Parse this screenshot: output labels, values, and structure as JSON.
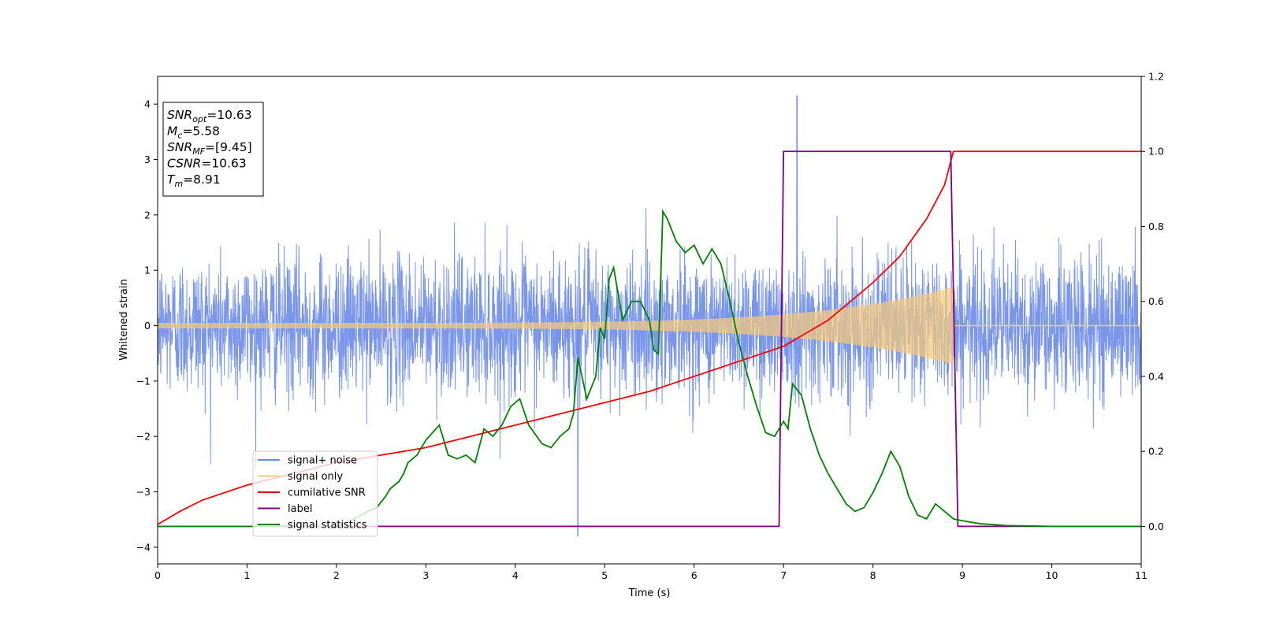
{
  "chart_data": {
    "type": "line",
    "xlabel": "Time (s)",
    "ylabel": "Whitened strain",
    "xlim": [
      0,
      11
    ],
    "ylim": [
      -4.3,
      4.5
    ],
    "y2lim": [
      -0.1,
      1.2
    ],
    "grid": false,
    "legend_position": "lower-left",
    "x_ticks": [
      0,
      1,
      2,
      3,
      4,
      5,
      6,
      7,
      8,
      9,
      10,
      11
    ],
    "y_ticks": [
      -4,
      -3,
      -2,
      -1,
      0,
      1,
      2,
      3,
      4
    ],
    "y2_ticks": [
      0.0,
      0.2,
      0.4,
      0.6,
      0.8,
      1.0,
      1.2
    ],
    "y_tick_labels": [
      "−4",
      "−3",
      "−2",
      "−1",
      "0",
      "1",
      "2",
      "3",
      "4"
    ],
    "y2_tick_labels": [
      "0.0",
      "0.2",
      "0.4",
      "0.6",
      "0.8",
      "1.0",
      "1.2"
    ],
    "annotation": {
      "lines": [
        {
          "base": "SNR",
          "sub": "opt",
          "rest": "=10.63"
        },
        {
          "base": "M",
          "sub": "c",
          "rest": "=5.58"
        },
        {
          "base": "SNR",
          "sub": "MF",
          "rest": "=[9.45]"
        },
        {
          "base": "CSNR",
          "sub": "",
          "rest": "=10.63"
        },
        {
          "base": "T",
          "sub": "m",
          "rest": "=8.91"
        }
      ]
    },
    "series": [
      {
        "name": "signal+ noise",
        "color": "#6b8be8",
        "axis": "left",
        "kind": "noise",
        "sigma": 0.62,
        "peak": {
          "x": 7.15,
          "y": 4.15
        },
        "trough": {
          "x": 4.7,
          "y": -3.8
        }
      },
      {
        "name": "signal only",
        "color": "#f5c97a",
        "axis": "left",
        "kind": "chirp",
        "start_amp": 0.05,
        "end_amp": 0.7,
        "t_end": 8.9
      },
      {
        "name": "cumilative SNR",
        "color": "#ff0000",
        "axis": "right",
        "x": [
          0,
          0.25,
          0.5,
          1.0,
          1.5,
          2.0,
          2.5,
          3.0,
          3.5,
          4.0,
          4.5,
          5.0,
          5.5,
          6.0,
          6.5,
          7.0,
          7.5,
          8.0,
          8.3,
          8.6,
          8.8,
          8.9,
          9.0,
          11.0
        ],
        "y": [
          0.005,
          0.04,
          0.07,
          0.11,
          0.14,
          0.17,
          0.19,
          0.21,
          0.24,
          0.27,
          0.3,
          0.33,
          0.36,
          0.4,
          0.44,
          0.48,
          0.55,
          0.65,
          0.72,
          0.82,
          0.91,
          1.0,
          1.0,
          1.0
        ]
      },
      {
        "name": "label",
        "color": "#800080",
        "axis": "right",
        "x": [
          0,
          6.95,
          7.0,
          8.87,
          8.95,
          11.0
        ],
        "y": [
          0.0,
          0.0,
          1.0,
          1.0,
          0.0,
          0.0
        ]
      },
      {
        "name": "signal statistics",
        "color": "#008000",
        "axis": "right",
        "x": [
          0,
          2.0,
          2.2,
          2.35,
          2.45,
          2.55,
          2.6,
          2.7,
          2.75,
          2.8,
          2.9,
          3.0,
          3.15,
          3.25,
          3.35,
          3.45,
          3.55,
          3.65,
          3.75,
          3.85,
          3.95,
          4.05,
          4.15,
          4.3,
          4.4,
          4.5,
          4.6,
          4.65,
          4.7,
          4.8,
          4.9,
          4.95,
          5.0,
          5.05,
          5.1,
          5.2,
          5.3,
          5.4,
          5.5,
          5.55,
          5.6,
          5.65,
          5.7,
          5.8,
          5.9,
          6.0,
          6.1,
          6.2,
          6.3,
          6.4,
          6.5,
          6.6,
          6.7,
          6.8,
          6.9,
          7.0,
          7.05,
          7.1,
          7.2,
          7.3,
          7.4,
          7.5,
          7.6,
          7.7,
          7.8,
          7.9,
          8.0,
          8.1,
          8.2,
          8.3,
          8.4,
          8.5,
          8.6,
          8.7,
          8.8,
          8.9,
          9.0,
          9.2,
          9.5,
          10.0,
          11.0
        ],
        "y": [
          0.0,
          0.0,
          0.02,
          0.04,
          0.05,
          0.08,
          0.1,
          0.12,
          0.14,
          0.17,
          0.19,
          0.23,
          0.27,
          0.19,
          0.18,
          0.19,
          0.17,
          0.26,
          0.24,
          0.27,
          0.32,
          0.34,
          0.27,
          0.22,
          0.21,
          0.24,
          0.26,
          0.3,
          0.45,
          0.34,
          0.4,
          0.53,
          0.5,
          0.66,
          0.69,
          0.55,
          0.6,
          0.6,
          0.55,
          0.47,
          0.46,
          0.84,
          0.82,
          0.76,
          0.73,
          0.75,
          0.7,
          0.74,
          0.7,
          0.6,
          0.49,
          0.4,
          0.32,
          0.25,
          0.24,
          0.28,
          0.26,
          0.38,
          0.35,
          0.26,
          0.19,
          0.14,
          0.1,
          0.06,
          0.04,
          0.05,
          0.09,
          0.14,
          0.2,
          0.16,
          0.08,
          0.03,
          0.02,
          0.06,
          0.04,
          0.02,
          0.015,
          0.007,
          0.002,
          0.0,
          0.0
        ]
      }
    ]
  }
}
